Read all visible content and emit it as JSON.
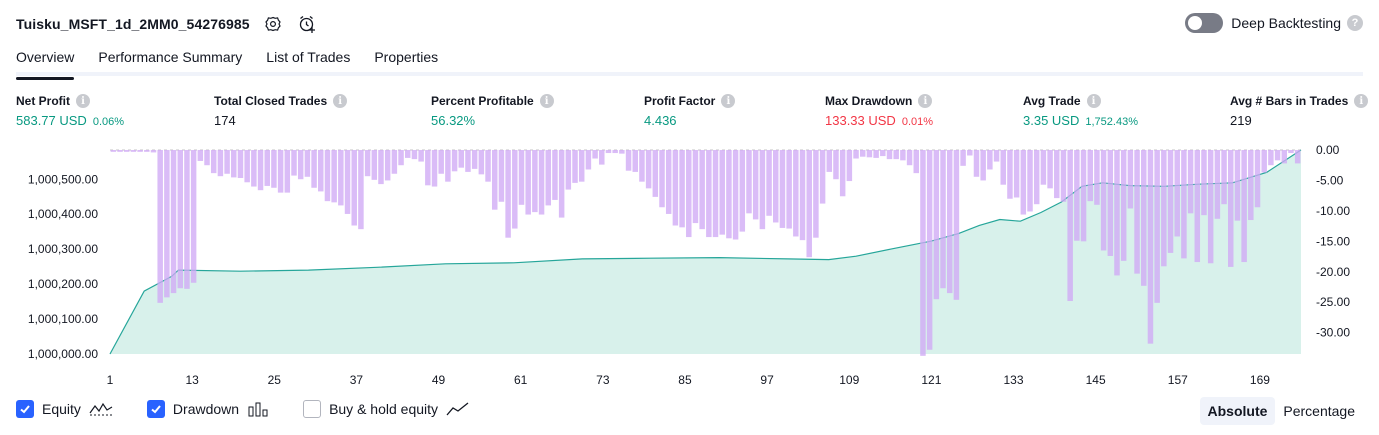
{
  "header": {
    "title": "Tuisku_MSFT_1d_2MM0_54276985",
    "settings_icon": "settings-icon",
    "alert_icon": "add-alert-icon"
  },
  "deep_backtesting": {
    "label": "Deep Backtesting",
    "enabled": false,
    "help_icon": "question-icon"
  },
  "tabs": [
    {
      "label": "Overview",
      "active": true
    },
    {
      "label": "Performance Summary",
      "active": false
    },
    {
      "label": "List of Trades",
      "active": false
    },
    {
      "label": "Properties",
      "active": false
    }
  ],
  "metrics": [
    {
      "label": "Net Profit",
      "value": "583.77 USD",
      "pct": "0.06%",
      "color": "#089981"
    },
    {
      "label": "Total Closed Trades",
      "value": "174",
      "pct": "",
      "color": "#131722"
    },
    {
      "label": "Percent Profitable",
      "value": "56.32%",
      "pct": "",
      "color": "#089981"
    },
    {
      "label": "Profit Factor",
      "value": "4.436",
      "pct": "",
      "color": "#089981"
    },
    {
      "label": "Max Drawdown",
      "value": "133.33 USD",
      "pct": "0.01%",
      "color": "#f23645"
    },
    {
      "label": "Avg Trade",
      "value": "3.35 USD",
      "pct": "1,752.43%",
      "color": "#089981"
    },
    {
      "label": "Avg # Bars in Trades",
      "value": "219",
      "pct": "",
      "color": "#131722"
    }
  ],
  "chart_data": {
    "type": "area",
    "x_ticks": [
      "1",
      "13",
      "25",
      "37",
      "49",
      "61",
      "73",
      "85",
      "97",
      "109",
      "121",
      "133",
      "145",
      "157",
      "169"
    ],
    "x_range": [
      1,
      175
    ],
    "y_left_ticks": [
      "1,000,000.00",
      "1,000,100.00",
      "1,000,200.00",
      "1,000,300.00",
      "1,000,400.00",
      "1,000,500.00"
    ],
    "y_left_range": [
      1000000,
      1000583.77
    ],
    "y_right_ticks": [
      "0.00",
      "-5.00",
      "-10.00",
      "-15.00",
      "-20.00",
      "-25.00",
      "-30.00"
    ],
    "y_right_range": [
      -33.5,
      0
    ],
    "colors": {
      "equity_line": "#26a69a",
      "equity_fill": "#d1efe8",
      "drawdown": "#cfa9f5"
    },
    "series": [
      {
        "name": "Equity",
        "points": [
          [
            1,
            1000000
          ],
          [
            6,
            1000180
          ],
          [
            10,
            1000222
          ],
          [
            11,
            1000240
          ],
          [
            20,
            1000237
          ],
          [
            30,
            1000240
          ],
          [
            40,
            1000248
          ],
          [
            50,
            1000258
          ],
          [
            60,
            1000261
          ],
          [
            70,
            1000272
          ],
          [
            80,
            1000274
          ],
          [
            90,
            1000276
          ],
          [
            100,
            1000272
          ],
          [
            106,
            1000270
          ],
          [
            110,
            1000280
          ],
          [
            115,
            1000300
          ],
          [
            121,
            1000323
          ],
          [
            125,
            1000345
          ],
          [
            128,
            1000368
          ],
          [
            131,
            1000385
          ],
          [
            134,
            1000380
          ],
          [
            137,
            1000405
          ],
          [
            140,
            1000435
          ],
          [
            143,
            1000480
          ],
          [
            146,
            1000490
          ],
          [
            150,
            1000482
          ],
          [
            155,
            1000480
          ],
          [
            160,
            1000486
          ],
          [
            165,
            1000490
          ],
          [
            170,
            1000520
          ],
          [
            175,
            1000583.77
          ]
        ]
      },
      {
        "name": "Drawdown",
        "values": [
          -0.3,
          -0.3,
          -0.3,
          -0.3,
          -0.3,
          -0.3,
          -0.4,
          -25.1,
          -24.2,
          -23.5,
          -22.7,
          -22.8,
          -21.8,
          -1.8,
          -2.5,
          -3.8,
          -4.3,
          -3.9,
          -4.5,
          -4.6,
          -5.3,
          -6.0,
          -6.6,
          -5.9,
          -6.2,
          -7.0,
          -7.0,
          -4.2,
          -4.8,
          -4.4,
          -6.2,
          -6.8,
          -8.4,
          -8.6,
          -9.1,
          -10.5,
          -12.4,
          -13.0,
          -4.3,
          -4.9,
          -5.6,
          -5.0,
          -3.9,
          -2.5,
          -1.3,
          -1.5,
          -1.9,
          -5.8,
          -6.0,
          -3.9,
          -5.2,
          -3.5,
          -2.9,
          -3.6,
          -3.1,
          -4.0,
          -5.2,
          -9.8,
          -8.5,
          -14.4,
          -12.9,
          -9.0,
          -10.6,
          -10.2,
          -10.6,
          -9.1,
          -8.2,
          -11.1,
          -6.5,
          -5.4,
          -5.2,
          -3.2,
          -1.4,
          -2.4,
          -0.5,
          -0.5,
          -0.6,
          -3.4,
          -3.6,
          -5.2,
          -6.3,
          -7.7,
          -9.4,
          -10.5,
          -12.4,
          -12.7,
          -14.3,
          -12.0,
          -13.0,
          -14.3,
          -14.3,
          -13.9,
          -14.5,
          -14.7,
          -13.4,
          -10.4,
          -11.4,
          -13.0,
          -10.8,
          -11.9,
          -12.8,
          -12.9,
          -14.2,
          -14.8,
          -17.6,
          -14.4,
          -8.8,
          -3.6,
          -4.8,
          -7.6,
          -5.1,
          -1.4,
          -1.1,
          -1.2,
          -1.3,
          -1.0,
          -1.5,
          -1.5,
          -1.7,
          -2.5,
          -3.8,
          -33.8,
          -32.8,
          -24.5,
          -22.7,
          -23.5,
          -24.6,
          -2.6,
          -0.9,
          -4.4,
          -5.0,
          -3.2,
          -1.9,
          -5.7,
          -8.0,
          -7.8,
          -10.6,
          -10.1,
          -8.9,
          -5.7,
          -6.3,
          -7.9,
          -8.5,
          -24.8,
          -14.9,
          -15.0,
          -8.4,
          -9.0,
          -16.5,
          -17.4,
          -20.6,
          -18.2,
          -9.6,
          -20.3,
          -22.3,
          -31.8,
          -25.1,
          -19.1,
          -16.9,
          -14.2,
          -17.8,
          -10.4,
          -18.4,
          -10.7,
          -18.6,
          -11.3,
          -8.9,
          -19.2,
          -11.6,
          -18.4,
          -11.5,
          -9.4,
          -3.7,
          -2.5,
          -1.7,
          -2.2,
          -0.5,
          -2.2
        ]
      }
    ]
  },
  "legend": {
    "equity": {
      "label": "Equity",
      "checked": true,
      "icon": "equity-line-icon"
    },
    "drawdown": {
      "label": "Drawdown",
      "checked": true,
      "icon": "drawdown-bars-icon"
    },
    "buy_hold": {
      "label": "Buy & hold equity",
      "checked": false,
      "icon": "buy-hold-line-icon"
    }
  },
  "view_mode": {
    "absolute": "Absolute",
    "percentage": "Percentage",
    "selected": "Absolute"
  }
}
